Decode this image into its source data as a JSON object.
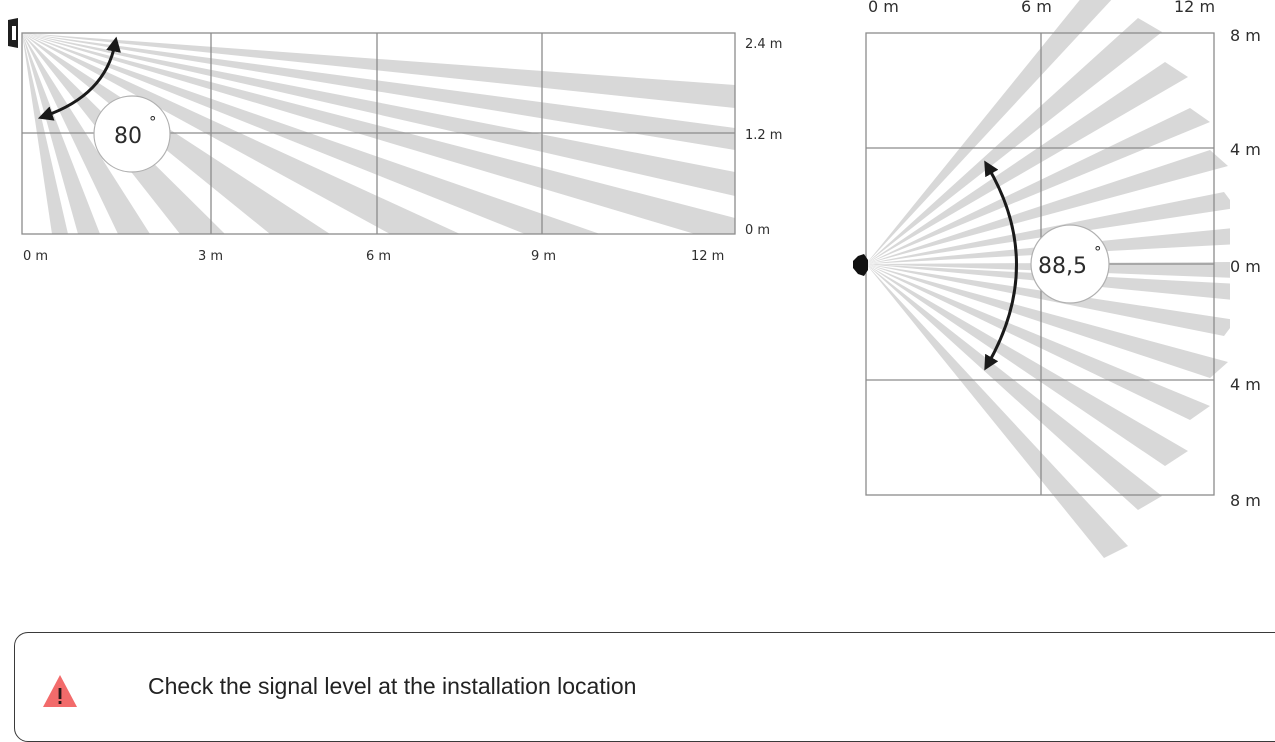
{
  "side_view": {
    "angle": "80",
    "angle_unit": "°",
    "x_labels": [
      "0 m",
      "3 m",
      "6 m",
      "9 m",
      "12 m"
    ],
    "y_labels": [
      "2.4 m",
      "1.2 m",
      "0 m"
    ]
  },
  "top_view": {
    "angle": "88,5",
    "angle_unit": "°",
    "x_labels": [
      "0 m",
      "6 m",
      "12 m"
    ],
    "y_labels": [
      "8 m",
      "4 m",
      "0 m",
      "4 m",
      "8 m"
    ]
  },
  "note": {
    "icon": "warning-triangle-icon",
    "icon_color": "#f26b6b",
    "text": "Check the signal level at the installation location"
  }
}
